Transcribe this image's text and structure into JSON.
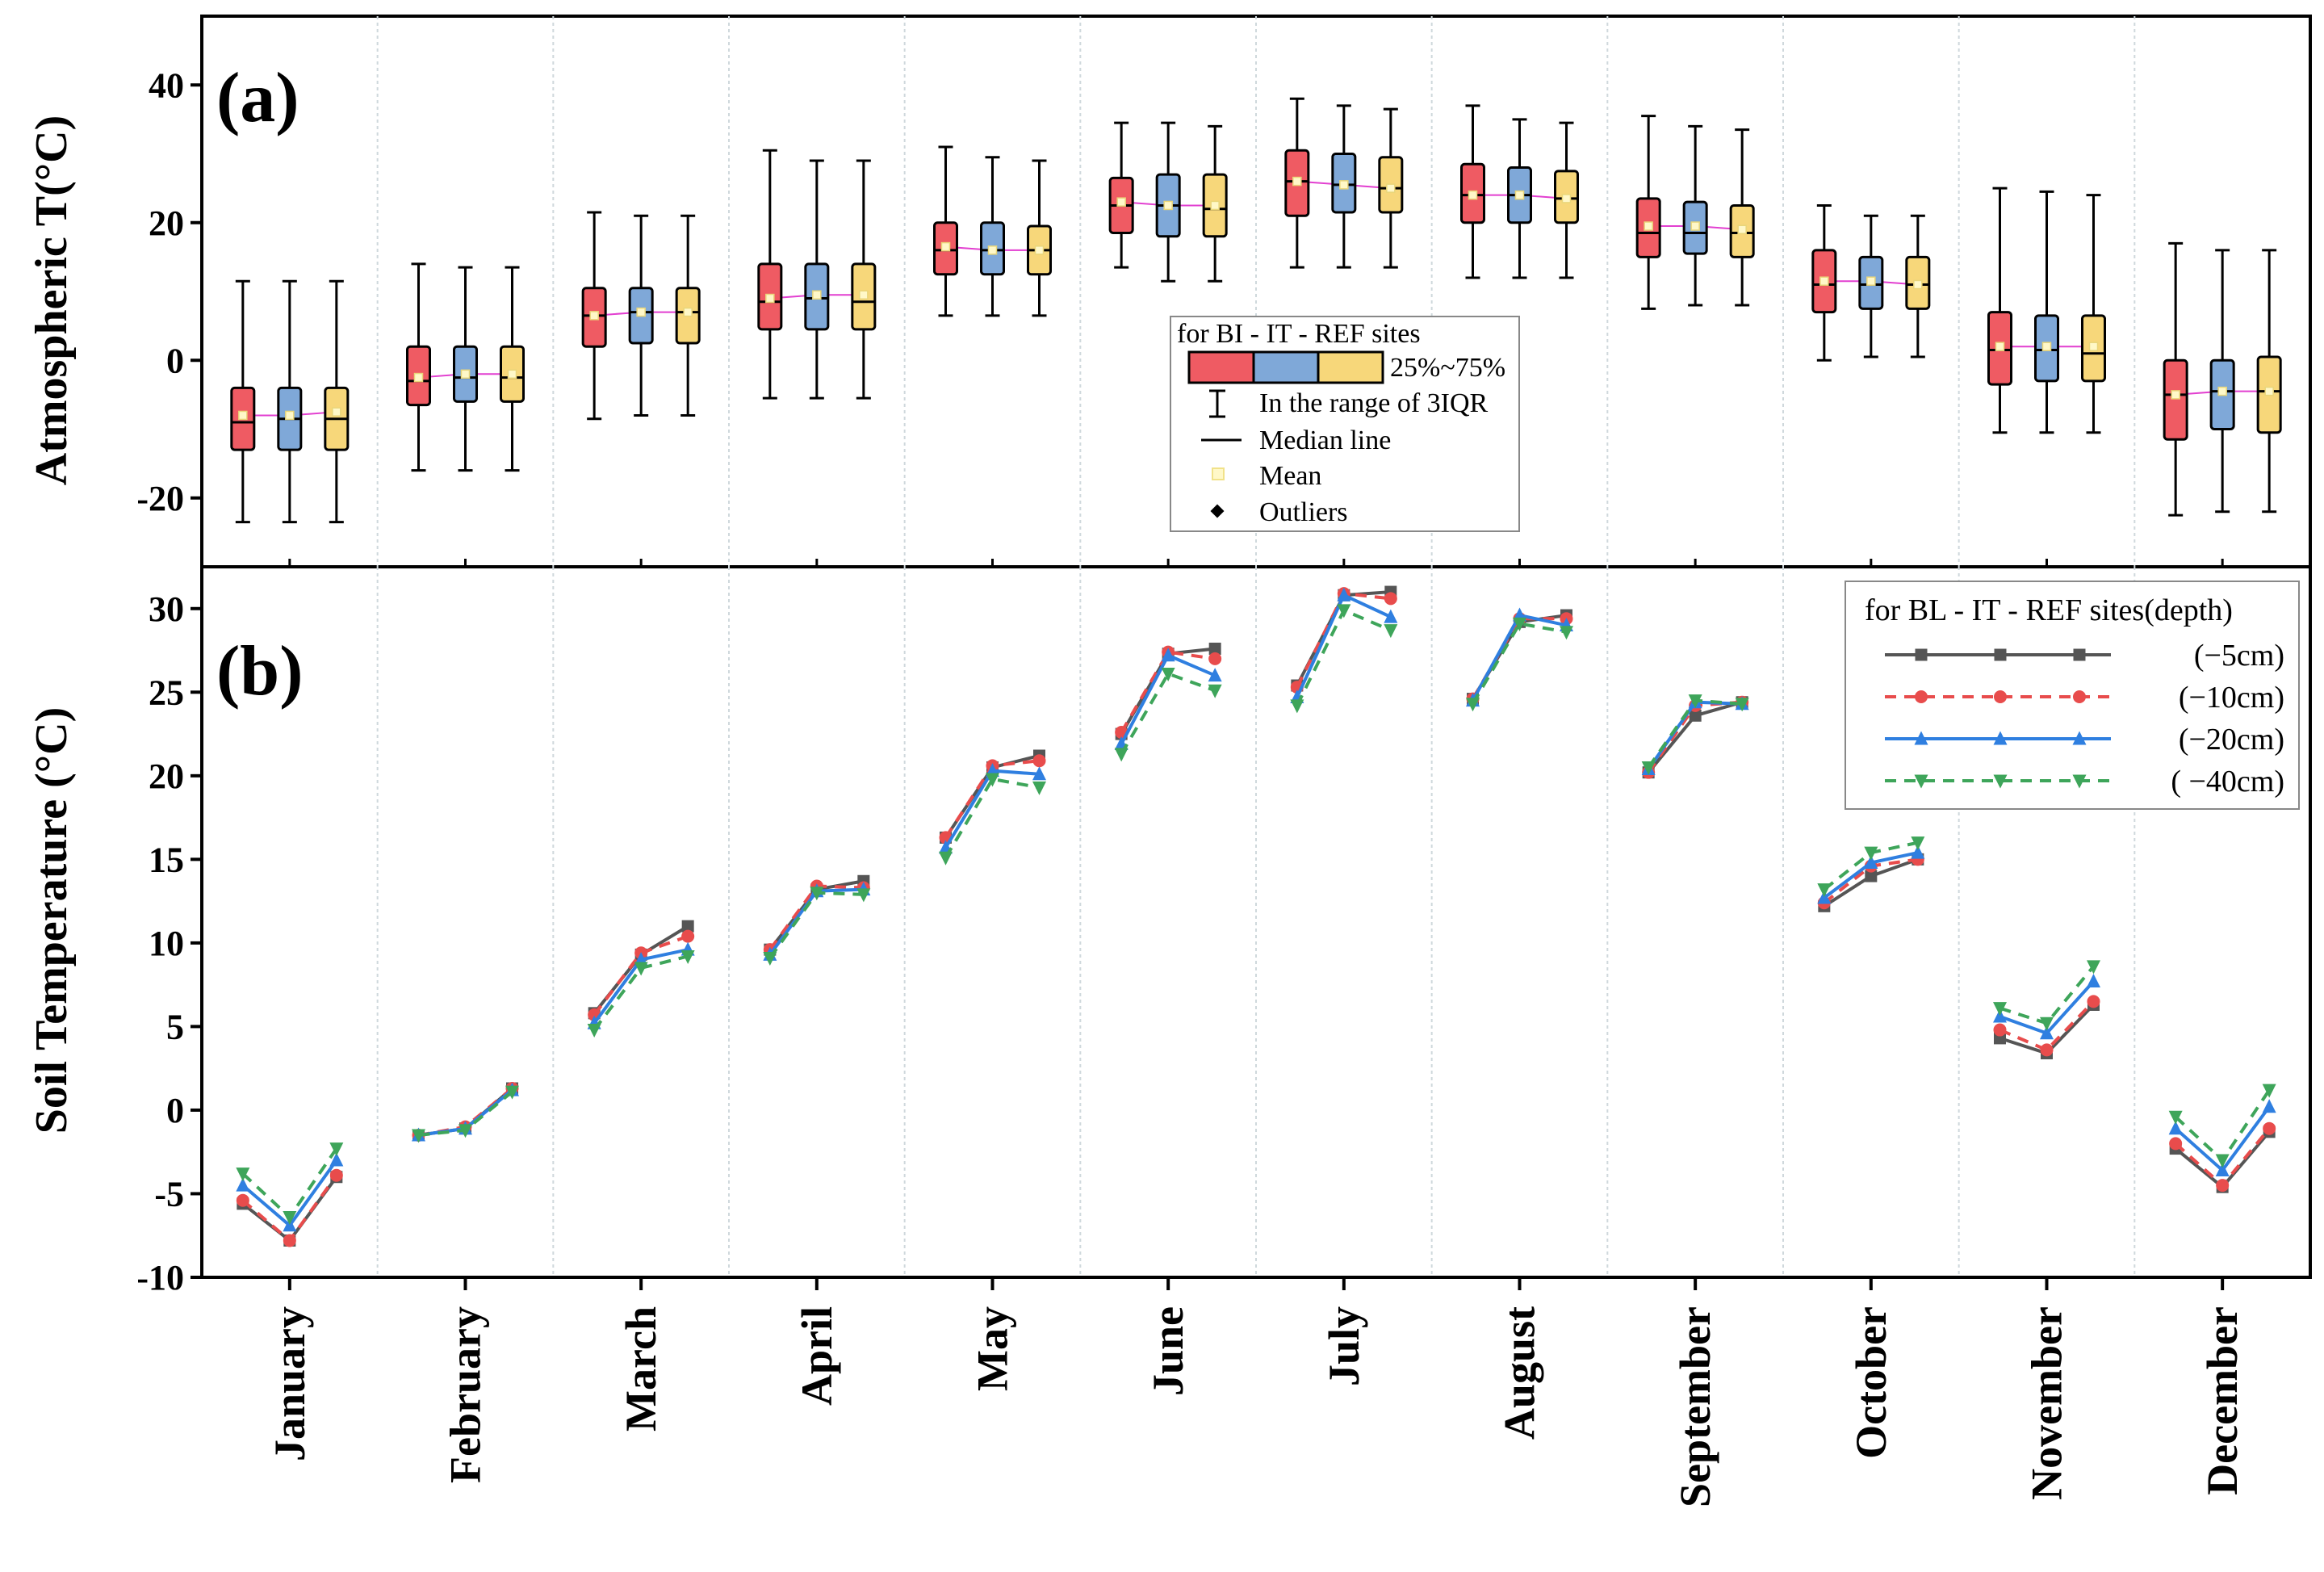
{
  "chart_data": [
    {
      "type": "box",
      "panel_label": "(a)",
      "ylabel": "Atmospheric T(°C)",
      "ylim": [
        -30,
        50
      ],
      "yticks": [
        -20,
        0,
        20,
        40
      ],
      "months": [
        "January",
        "February",
        "March",
        "April",
        "May",
        "June",
        "July",
        "August",
        "September",
        "October",
        "November",
        "December"
      ],
      "series_names": [
        "BI",
        "IT",
        "REF"
      ],
      "colors": {
        "BI": "#ef5b63",
        "IT": "#7fa8d8",
        "REF": "#f7d77a",
        "mean_line": "#e23fd0"
      },
      "legend": {
        "title": "for BI  -  IT  -  REF sites",
        "box_label": "25%~75%",
        "whisker_label": "In the range of 3IQR",
        "median_label": "Median line",
        "mean_label": "Mean",
        "outlier_label": "Outliers"
      },
      "boxes": [
        [
          [
            -23.5,
            -13,
            -9,
            -4,
            11.5,
            -8
          ],
          [
            -23.5,
            -13,
            -8.5,
            -4,
            11.5,
            -8
          ],
          [
            -23.5,
            -13,
            -8.5,
            -4,
            11.5,
            -7.5
          ]
        ],
        [
          [
            -16,
            -6.5,
            -3,
            2,
            14,
            -2.5
          ],
          [
            -16,
            -6,
            -2.5,
            2,
            13.5,
            -2
          ],
          [
            -16,
            -6,
            -2.5,
            2,
            13.5,
            -2
          ]
        ],
        [
          [
            -8.5,
            2,
            6.5,
            10.5,
            21.5,
            6.5
          ],
          [
            -8,
            2.5,
            7,
            10.5,
            21,
            7
          ],
          [
            -8,
            2.5,
            7,
            10.5,
            21,
            7
          ]
        ],
        [
          [
            -5.5,
            4.5,
            8.5,
            14,
            30.5,
            9
          ],
          [
            -5.5,
            4.5,
            9,
            14,
            29,
            9.5
          ],
          [
            -5.5,
            4.5,
            8.5,
            14,
            29,
            9.5
          ]
        ],
        [
          [
            6.5,
            12.5,
            16,
            20,
            31,
            16.5
          ],
          [
            6.5,
            12.5,
            16,
            20,
            29.5,
            16
          ],
          [
            6.5,
            12.5,
            16,
            19.5,
            29,
            16
          ]
        ],
        [
          [
            13.5,
            18.5,
            22.5,
            26.5,
            34.5,
            23
          ],
          [
            11.5,
            18,
            22.5,
            27,
            34.5,
            22.5
          ],
          [
            11.5,
            18,
            22,
            27,
            34,
            22.5
          ]
        ],
        [
          [
            13.5,
            21,
            26,
            30.5,
            38,
            26
          ],
          [
            13.5,
            21.5,
            25.5,
            30,
            37,
            25.5
          ],
          [
            13.5,
            21.5,
            25,
            29.5,
            36.5,
            25
          ]
        ],
        [
          [
            12,
            20,
            24,
            28.5,
            37,
            24
          ],
          [
            12,
            20,
            24,
            28,
            35,
            24
          ],
          [
            12,
            20,
            23.5,
            27.5,
            34.5,
            23.5
          ]
        ],
        [
          [
            7.5,
            15,
            18.5,
            23.5,
            35.5,
            19.5
          ],
          [
            8,
            15.5,
            18.5,
            23,
            34,
            19.5
          ],
          [
            8,
            15,
            18.5,
            22.5,
            33.5,
            19
          ]
        ],
        [
          [
            0,
            7,
            11,
            16,
            22.5,
            11.5
          ],
          [
            0.5,
            7.5,
            11,
            15,
            21,
            11.5
          ],
          [
            0.5,
            7.5,
            11,
            15,
            21,
            11
          ]
        ],
        [
          [
            -10.5,
            -3.5,
            1.5,
            7,
            25,
            2
          ],
          [
            -10.5,
            -3,
            1.5,
            6.5,
            24.5,
            2
          ],
          [
            -10.5,
            -3,
            1,
            6.5,
            24,
            2
          ]
        ],
        [
          [
            -22.5,
            -11.5,
            -5,
            0,
            17,
            -5
          ],
          [
            -22,
            -10,
            -4.5,
            0,
            16,
            -4.5
          ],
          [
            -22,
            -10.5,
            -4.5,
            0.5,
            16,
            -4.5
          ]
        ]
      ],
      "box_fields": [
        "whisker_low",
        "q1",
        "median",
        "q3",
        "whisker_high",
        "mean"
      ]
    },
    {
      "type": "line",
      "panel_label": "(b)",
      "ylabel": "Soil Temperature (°C)",
      "ylim": [
        -10,
        32.5
      ],
      "yticks": [
        -10,
        -5,
        0,
        5,
        10,
        15,
        20,
        25,
        30
      ],
      "xlabel_months": [
        "January",
        "February",
        "March",
        "April",
        "May",
        "June",
        "July",
        "August",
        "September",
        "October",
        "November",
        "December"
      ],
      "legend_title": "for BL - IT - REF sites(depth)",
      "series": [
        {
          "name": "(−5cm)",
          "color": "#555555",
          "dash": "none",
          "marker": "square",
          "values": [
            [
              -5.6,
              -7.8,
              -4.0
            ],
            [
              -1.5,
              -1.1,
              1.3
            ],
            [
              5.8,
              9.3,
              11.0
            ],
            [
              9.6,
              13.2,
              13.7
            ],
            [
              16.3,
              20.5,
              21.2
            ],
            [
              22.5,
              27.3,
              27.6
            ],
            [
              25.4,
              30.8,
              31.0
            ],
            [
              24.6,
              29.2,
              29.6
            ],
            [
              20.2,
              23.6,
              24.4
            ],
            [
              12.2,
              14.0,
              15.0
            ],
            [
              4.3,
              3.4,
              6.3
            ],
            [
              -2.3,
              -4.6,
              -1.3
            ]
          ]
        },
        {
          "name": "(−10cm)",
          "color": "#e84c4c",
          "dash": "14,10",
          "marker": "circle",
          "values": [
            [
              -5.4,
              -7.8,
              -3.9
            ],
            [
              -1.5,
              -1.0,
              1.3
            ],
            [
              5.7,
              9.4,
              10.4
            ],
            [
              9.6,
              13.4,
              13.3
            ],
            [
              16.3,
              20.6,
              20.9
            ],
            [
              22.6,
              27.4,
              27.0
            ],
            [
              25.3,
              30.9,
              30.6
            ],
            [
              24.6,
              29.4,
              29.4
            ],
            [
              20.2,
              24.2,
              24.4
            ],
            [
              12.4,
              14.6,
              15.0
            ],
            [
              4.8,
              3.6,
              6.5
            ],
            [
              -2.0,
              -4.5,
              -1.1
            ]
          ]
        },
        {
          "name": "(−20cm)",
          "color": "#2f7fe0",
          "dash": "none",
          "marker": "triangle-up",
          "values": [
            [
              -4.5,
              -6.9,
              -3.0
            ],
            [
              -1.5,
              -1.1,
              1.2
            ],
            [
              5.2,
              9.0,
              9.6
            ],
            [
              9.3,
              13.1,
              13.2
            ],
            [
              15.7,
              20.3,
              20.1
            ],
            [
              21.9,
              27.2,
              26.0
            ],
            [
              24.7,
              30.8,
              29.5
            ],
            [
              24.5,
              29.6,
              29.0
            ],
            [
              20.4,
              24.4,
              24.3
            ],
            [
              12.7,
              14.8,
              15.4
            ],
            [
              5.6,
              4.6,
              7.7
            ],
            [
              -1.1,
              -3.6,
              0.2
            ]
          ]
        },
        {
          "name": "( −40cm)",
          "color": "#3ea55a",
          "dash": "14,10",
          "marker": "triangle-down",
          "values": [
            [
              -3.8,
              -6.4,
              -2.3
            ],
            [
              -1.5,
              -1.2,
              1.1
            ],
            [
              4.8,
              8.5,
              9.2
            ],
            [
              9.1,
              13.0,
              12.9
            ],
            [
              15.1,
              19.8,
              19.3
            ],
            [
              21.3,
              26.1,
              25.1
            ],
            [
              24.2,
              29.9,
              28.7
            ],
            [
              24.3,
              29.1,
              28.6
            ],
            [
              20.5,
              24.5,
              24.3
            ],
            [
              13.2,
              15.4,
              16.0
            ],
            [
              6.1,
              5.2,
              8.6
            ],
            [
              -0.4,
              -3.0,
              1.2
            ]
          ]
        }
      ]
    }
  ]
}
